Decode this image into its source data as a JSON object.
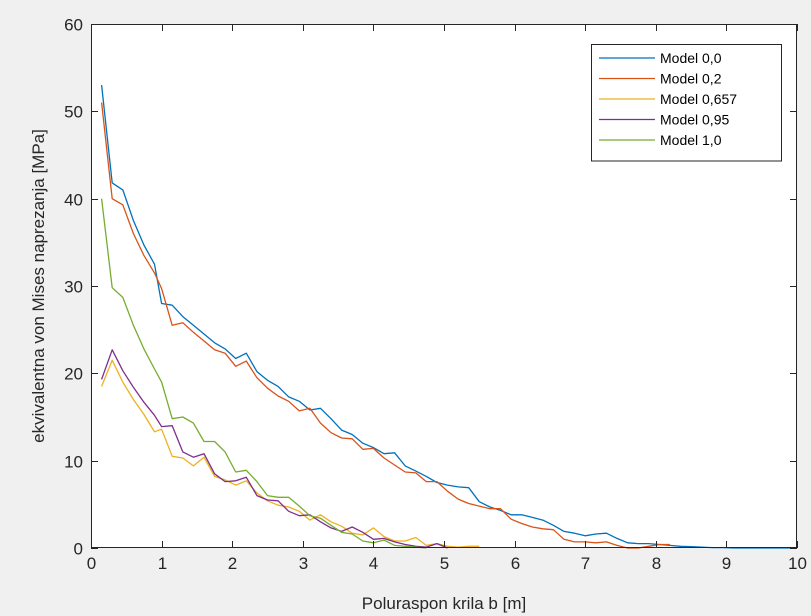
{
  "chart_data": {
    "type": "line",
    "title": "",
    "xlabel": "Poluraspon krila b [m]",
    "ylabel": "ekvivalentna von Mises naprezanja [MPa]",
    "xlim": [
      0,
      10
    ],
    "ylim": [
      0,
      60
    ],
    "xticks": [
      0,
      1,
      2,
      3,
      4,
      5,
      6,
      7,
      8,
      9,
      10
    ],
    "yticks": [
      0,
      10,
      20,
      30,
      40,
      50,
      60
    ],
    "grid": false,
    "legend_position": "top-right",
    "series": [
      {
        "name": "Model 0,0",
        "color": "#0072BD",
        "x": [
          0.15,
          0.3,
          0.45,
          0.6,
          0.75,
          0.9,
          1.0,
          1.15,
          1.3,
          1.45,
          1.6,
          1.75,
          1.9,
          2.05,
          2.2,
          2.35,
          2.5,
          2.65,
          2.8,
          2.95,
          3.1,
          3.25,
          3.4,
          3.55,
          3.7,
          3.85,
          4.0,
          4.15,
          4.3,
          4.45,
          4.6,
          4.75,
          4.9,
          5.05,
          5.2,
          5.35,
          5.5,
          5.65,
          5.8,
          5.95,
          6.1,
          6.25,
          6.4,
          6.55,
          6.7,
          6.85,
          7.0,
          7.15,
          7.3,
          7.45,
          7.6,
          7.75,
          7.9,
          8.05,
          8.2,
          8.35,
          8.5,
          8.65,
          8.8,
          8.95,
          9.1,
          9.3,
          9.5,
          9.7,
          10.0
        ],
        "y": [
          53.0,
          41.8,
          41.0,
          37.5,
          34.7,
          32.5,
          28.0,
          27.8,
          26.5,
          25.5,
          24.5,
          23.5,
          22.8,
          21.7,
          22.3,
          20.2,
          19.2,
          18.5,
          17.3,
          16.8,
          15.8,
          16.0,
          14.8,
          13.5,
          13.0,
          12.0,
          11.5,
          10.8,
          10.9,
          9.4,
          8.8,
          8.2,
          7.5,
          7.2,
          7.0,
          6.9,
          5.3,
          4.7,
          4.3,
          3.8,
          3.8,
          3.5,
          3.2,
          2.6,
          1.9,
          1.7,
          1.4,
          1.6,
          1.7,
          1.1,
          0.6,
          0.5,
          0.5,
          0.4,
          0.3,
          0.2,
          0.15,
          0.1,
          0.05,
          0.05,
          0.0,
          0.0,
          0.0,
          0.0,
          0.0
        ]
      },
      {
        "name": "Model 0,2",
        "color": "#D95319",
        "x": [
          0.15,
          0.3,
          0.45,
          0.6,
          0.75,
          0.9,
          1.0,
          1.15,
          1.3,
          1.45,
          1.6,
          1.75,
          1.9,
          2.05,
          2.2,
          2.35,
          2.5,
          2.65,
          2.8,
          2.95,
          3.1,
          3.25,
          3.4,
          3.55,
          3.7,
          3.85,
          4.0,
          4.15,
          4.3,
          4.45,
          4.6,
          4.75,
          4.9,
          5.05,
          5.2,
          5.35,
          5.5,
          5.65,
          5.8,
          5.95,
          6.1,
          6.25,
          6.4,
          6.55,
          6.7,
          6.85,
          7.0,
          7.15,
          7.3,
          7.45,
          7.6,
          7.75,
          7.9,
          8.05,
          8.2
        ],
        "y": [
          51.0,
          40.0,
          39.3,
          36.0,
          33.5,
          31.5,
          29.7,
          25.5,
          25.8,
          24.7,
          23.7,
          22.7,
          22.3,
          20.8,
          21.4,
          19.5,
          18.3,
          17.4,
          16.8,
          15.7,
          16.0,
          14.3,
          13.2,
          12.6,
          12.5,
          11.3,
          11.4,
          10.3,
          9.5,
          8.7,
          8.6,
          7.6,
          7.6,
          6.5,
          5.6,
          5.1,
          4.8,
          4.5,
          4.5,
          3.3,
          2.8,
          2.4,
          2.2,
          2.1,
          1.0,
          0.7,
          0.7,
          0.6,
          0.7,
          0.3,
          0.0,
          0.0,
          0.2,
          0.4,
          0.4
        ]
      },
      {
        "name": "Model 0,657",
        "color": "#EDB120",
        "x": [
          0.15,
          0.3,
          0.45,
          0.6,
          0.75,
          0.9,
          1.0,
          1.15,
          1.3,
          1.45,
          1.6,
          1.75,
          1.9,
          2.05,
          2.2,
          2.35,
          2.5,
          2.65,
          2.8,
          2.95,
          3.1,
          3.25,
          3.4,
          3.55,
          3.7,
          3.85,
          4.0,
          4.15,
          4.3,
          4.45,
          4.6,
          4.75,
          4.9,
          5.05,
          5.2,
          5.35,
          5.5
        ],
        "y": [
          18.5,
          21.5,
          19.0,
          17.0,
          15.3,
          13.3,
          13.6,
          10.5,
          10.3,
          9.4,
          10.4,
          8.2,
          7.8,
          7.2,
          7.7,
          6.3,
          5.4,
          4.9,
          4.7,
          4.2,
          3.2,
          3.8,
          3.0,
          2.5,
          1.7,
          1.5,
          2.3,
          1.3,
          0.8,
          0.8,
          1.2,
          0.3,
          0.5,
          0.2,
          0.1,
          0.2,
          0.2
        ]
      },
      {
        "name": "Model 0,95",
        "color": "#7E2F8E",
        "x": [
          0.15,
          0.3,
          0.45,
          0.6,
          0.75,
          0.9,
          1.0,
          1.15,
          1.3,
          1.45,
          1.6,
          1.75,
          1.9,
          2.05,
          2.2,
          2.35,
          2.5,
          2.65,
          2.8,
          2.95,
          3.1,
          3.25,
          3.4,
          3.55,
          3.7,
          3.85,
          4.0,
          4.15,
          4.3,
          4.45,
          4.6,
          4.75,
          4.9,
          5.05
        ],
        "y": [
          19.3,
          22.7,
          20.3,
          18.4,
          16.7,
          15.2,
          13.9,
          14.0,
          11.0,
          10.4,
          10.8,
          8.5,
          7.6,
          7.7,
          8.1,
          6.0,
          5.5,
          5.4,
          4.2,
          3.7,
          3.8,
          3.0,
          2.3,
          1.9,
          2.4,
          1.8,
          1.0,
          1.1,
          0.7,
          0.4,
          0.2,
          0.1,
          0.5,
          0.0
        ]
      },
      {
        "name": "Model 1,0",
        "color": "#77AC30",
        "x": [
          0.15,
          0.3,
          0.45,
          0.6,
          0.75,
          0.9,
          1.0,
          1.15,
          1.3,
          1.45,
          1.6,
          1.75,
          1.9,
          2.05,
          2.2,
          2.35,
          2.5,
          2.65,
          2.8,
          2.95,
          3.1,
          3.25,
          3.4,
          3.55,
          3.7,
          3.85,
          4.0,
          4.15,
          4.3,
          4.45,
          4.6,
          4.75
        ],
        "y": [
          40.0,
          29.8,
          28.7,
          25.5,
          22.8,
          20.5,
          19.0,
          14.8,
          15.0,
          14.3,
          12.2,
          12.2,
          11.0,
          8.7,
          8.9,
          7.6,
          6.0,
          5.8,
          5.8,
          4.8,
          3.7,
          3.4,
          2.6,
          1.8,
          1.6,
          0.8,
          0.6,
          0.9,
          0.3,
          0.2,
          0.1,
          0.0
        ]
      }
    ]
  }
}
